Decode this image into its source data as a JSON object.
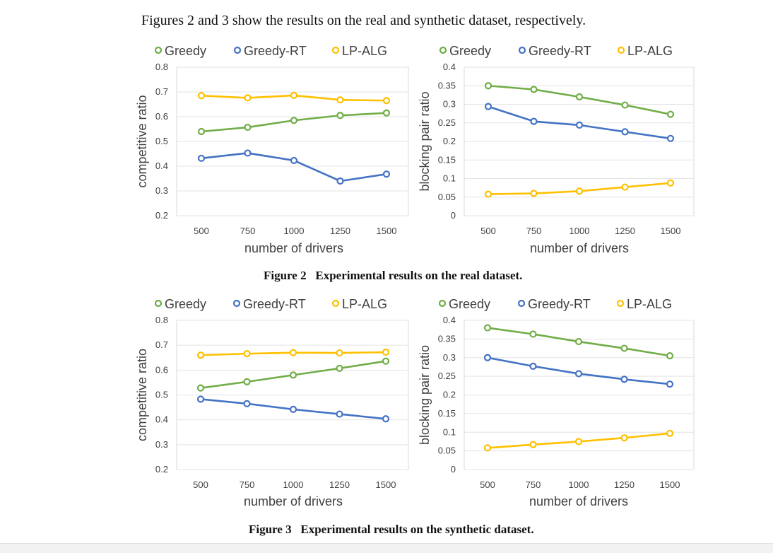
{
  "intro_text": "Figures 2 and 3 show the results on the real and synthetic dataset, respectively.",
  "figure2": {
    "caption_label": "Figure 2",
    "caption_text": "Experimental results on the real dataset."
  },
  "figure3": {
    "caption_label": "Figure 3",
    "caption_text": "Experimental results on the synthetic dataset."
  },
  "colors": {
    "Greedy": "#70ad47",
    "Greedy-RT": "#4472c4",
    "LP-ALG": "#ffc000"
  },
  "chart_data": [
    {
      "type": "line",
      "title": "",
      "xlabel": "number of drivers",
      "ylabel": "competitive ratio",
      "x": [
        500,
        750,
        1000,
        1250,
        1500
      ],
      "ylim": [
        0.2,
        0.8
      ],
      "yticks": [
        "0.2",
        "0.3",
        "0.4",
        "0.5",
        "0.6",
        "0.7",
        "0.8"
      ],
      "grid": true,
      "legend_position": "top",
      "series": [
        {
          "name": "Greedy",
          "values": [
            0.54,
            0.557,
            0.585,
            0.605,
            0.615
          ]
        },
        {
          "name": "Greedy-RT",
          "values": [
            0.432,
            0.453,
            0.423,
            0.34,
            0.368
          ]
        },
        {
          "name": "LP-ALG",
          "values": [
            0.685,
            0.676,
            0.686,
            0.668,
            0.665
          ]
        }
      ]
    },
    {
      "type": "line",
      "title": "",
      "xlabel": "number of drivers",
      "ylabel": "blocking pair ratio",
      "x": [
        500,
        750,
        1000,
        1250,
        1500
      ],
      "ylim": [
        0,
        0.4
      ],
      "yticks": [
        "0",
        "0.05",
        "0.1",
        "0.15",
        "0.2",
        "0.25",
        "0.3",
        "0.35",
        "0.4"
      ],
      "grid": true,
      "legend_position": "top",
      "series": [
        {
          "name": "Greedy",
          "values": [
            0.35,
            0.34,
            0.32,
            0.298,
            0.273
          ]
        },
        {
          "name": "Greedy-RT",
          "values": [
            0.294,
            0.254,
            0.244,
            0.226,
            0.208
          ]
        },
        {
          "name": "LP-ALG",
          "values": [
            0.058,
            0.06,
            0.066,
            0.077,
            0.088
          ]
        }
      ]
    },
    {
      "type": "line",
      "title": "",
      "xlabel": "number of drivers",
      "ylabel": "competitive ratio",
      "x": [
        500,
        750,
        1000,
        1250,
        1500
      ],
      "ylim": [
        0.2,
        0.8
      ],
      "yticks": [
        "0.2",
        "0.3",
        "0.4",
        "0.5",
        "0.6",
        "0.7",
        "0.8"
      ],
      "grid": true,
      "legend_position": "top",
      "series": [
        {
          "name": "Greedy",
          "values": [
            0.528,
            0.553,
            0.58,
            0.607,
            0.636
          ]
        },
        {
          "name": "Greedy-RT",
          "values": [
            0.483,
            0.465,
            0.442,
            0.423,
            0.404
          ]
        },
        {
          "name": "LP-ALG",
          "values": [
            0.66,
            0.666,
            0.67,
            0.669,
            0.672
          ]
        }
      ]
    },
    {
      "type": "line",
      "title": "",
      "xlabel": "number of drivers",
      "ylabel": "blocking pair ratio",
      "x": [
        500,
        750,
        1000,
        1250,
        1500
      ],
      "ylim": [
        0,
        0.4
      ],
      "yticks": [
        "0",
        "0.05",
        "0.1",
        "0.15",
        "0.2",
        "0.25",
        "0.3",
        "0.35",
        "0.4"
      ],
      "grid": true,
      "legend_position": "top",
      "series": [
        {
          "name": "Greedy",
          "values": [
            0.38,
            0.363,
            0.343,
            0.325,
            0.305
          ]
        },
        {
          "name": "Greedy-RT",
          "values": [
            0.3,
            0.277,
            0.257,
            0.242,
            0.229
          ]
        },
        {
          "name": "LP-ALG",
          "values": [
            0.058,
            0.067,
            0.075,
            0.085,
            0.097
          ]
        }
      ]
    }
  ]
}
